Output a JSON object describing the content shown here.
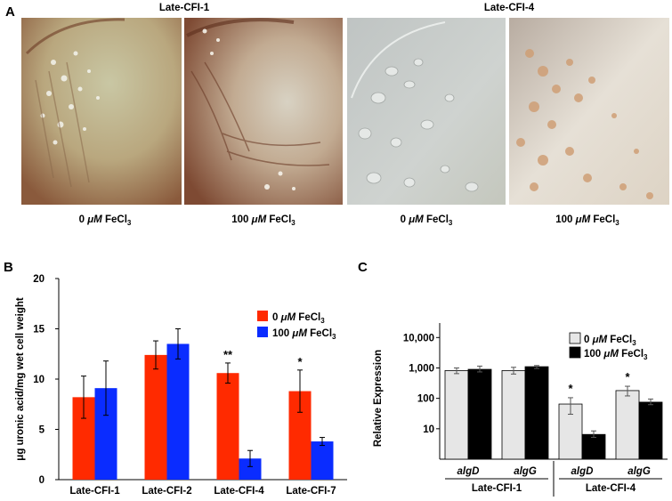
{
  "panel_a": {
    "letter": "A",
    "groups": [
      {
        "strain": "Late-CFI-1",
        "photos": [
          {
            "conc": "0",
            "unit": "μM",
            "chem": "FeCl",
            "sub": "3",
            "plate": "amber"
          },
          {
            "conc": "100",
            "unit": "μM",
            "chem": "FeCl",
            "sub": "3",
            "plate": "amber-dark"
          }
        ]
      },
      {
        "strain": "Late-CFI-4",
        "photos": [
          {
            "conc": "0",
            "unit": "μM",
            "chem": "FeCl",
            "sub": "3",
            "plate": "grey"
          },
          {
            "conc": "100",
            "unit": "μM",
            "chem": "FeCl",
            "sub": "3",
            "plate": "beige"
          }
        ]
      }
    ]
  },
  "panel_b": {
    "letter": "B"
  },
  "panel_c": {
    "letter": "C"
  },
  "chart_data": [
    {
      "type": "bar",
      "ylabel": "μg uronic acid/mg wet cell weight",
      "xlabel": "",
      "categories": [
        "Late-CFI-1",
        "Late-CFI-2",
        "Late-CFI-4",
        "Late-CFI-7"
      ],
      "series": [
        {
          "name": "0 μM FeCl3",
          "color": "#ff2a00",
          "values": [
            8.2,
            12.4,
            10.6,
            8.8
          ],
          "errors": [
            2.1,
            1.4,
            1.0,
            2.1
          ]
        },
        {
          "name": "100 μM FeCl3",
          "color": "#0a2cff",
          "values": [
            9.1,
            13.5,
            2.1,
            3.8
          ],
          "errors": [
            2.7,
            1.5,
            0.8,
            0.4
          ]
        }
      ],
      "annotations": [
        {
          "category": "Late-CFI-4",
          "series": 0,
          "text": "**"
        },
        {
          "category": "Late-CFI-7",
          "series": 0,
          "text": "*"
        }
      ],
      "yticks": [
        0,
        5,
        10,
        15,
        20
      ],
      "ylim": [
        0,
        20
      ],
      "grid": false,
      "legend_position": "top-right"
    },
    {
      "type": "bar",
      "ylabel": "Relative Expression",
      "xlabel": "",
      "log_scale": true,
      "categories": [
        "algD",
        "algG",
        "algD",
        "algG"
      ],
      "groups": [
        {
          "label": "Late-CFI-1",
          "categories": [
            "algD",
            "algG"
          ]
        },
        {
          "label": "Late-CFI-4",
          "categories": [
            "algD",
            "algG"
          ]
        }
      ],
      "series": [
        {
          "name": "0 μM FeCl3",
          "color": "#e6e6e6",
          "values": [
            820,
            820,
            65,
            180
          ],
          "err_low": [
            650,
            630,
            30,
            120
          ],
          "err_high": [
            1000,
            1050,
            105,
            250
          ]
        },
        {
          "name": "100 μM FeCl3",
          "color": "#000000",
          "values": [
            900,
            1100,
            6.5,
            75
          ],
          "err_low": [
            740,
            960,
            5.2,
            62
          ],
          "err_high": [
            1150,
            1200,
            8.5,
            95
          ]
        }
      ],
      "annotations": [
        {
          "category": "algD",
          "group": "Late-CFI-4",
          "series": 0,
          "text": "*"
        },
        {
          "category": "algG",
          "group": "Late-CFI-4",
          "series": 0,
          "text": "*"
        }
      ],
      "yticks": [
        "10",
        "100",
        "1,000",
        "10,000"
      ],
      "ylim": [
        1,
        30000
      ],
      "grid": false,
      "legend_position": "top-right"
    }
  ]
}
